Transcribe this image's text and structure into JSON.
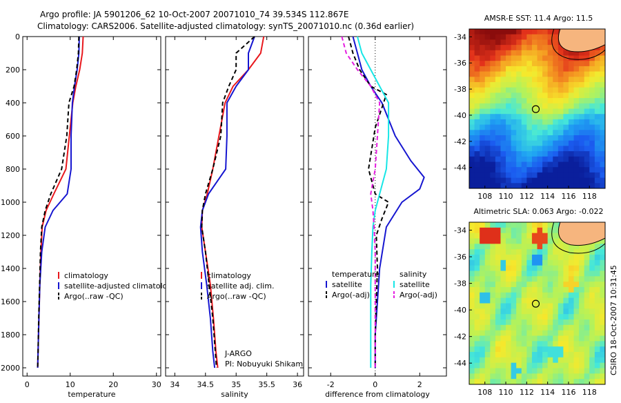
{
  "header": {
    "line1": "Argo profile: JA 5901206_62 10-Oct-2007 20071010_74 39.534S 112.867E",
    "line2": "Climatology: CARS2006. Satellite-adjusted climatology: synTS_20071010.nc (0.36d earlier)"
  },
  "side_stamp": "CSIRO 18-Oct-2007 10:31:45",
  "colors": {
    "red": "#e8171c",
    "blue": "#1515d0",
    "black": "#000000",
    "cyan": "#17e6e6",
    "magenta": "#e51ce0"
  },
  "chart_data": [
    {
      "type": "line",
      "xlabel": "temperature",
      "xlim": [
        -1,
        31
      ],
      "ylim": [
        2050,
        0
      ],
      "xticks": [
        0,
        10,
        20,
        30
      ],
      "yticks": [
        0,
        200,
        400,
        600,
        800,
        1000,
        1200,
        1400,
        1600,
        1800,
        2000
      ],
      "legend_placement": "lower-right",
      "series": [
        {
          "name": "climatology",
          "color": "red",
          "dash": "",
          "x": [
            13,
            12.8,
            12.2,
            11.3,
            10.6,
            9.8,
            9.0,
            6.2,
            4.4,
            3.5,
            3.2,
            2.95,
            2.75,
            2.55,
            2.45
          ],
          "y": [
            0,
            100,
            200,
            300,
            400,
            600,
            800,
            950,
            1050,
            1150,
            1300,
            1500,
            1700,
            1900,
            2000
          ]
        },
        {
          "name": "satellite-adjusted climatology",
          "color": "blue",
          "dash": "",
          "x": [
            12.1,
            12.0,
            11.6,
            11.0,
            10.5,
            10.2,
            10.2,
            9.3,
            6.0,
            4.2,
            3.4,
            2.95,
            2.75,
            2.55,
            2.45
          ],
          "y": [
            0,
            100,
            200,
            300,
            400,
            600,
            800,
            950,
            1050,
            1150,
            1300,
            1500,
            1700,
            1900,
            2000
          ]
        },
        {
          "name": "Argo(..raw -QC)",
          "color": "black",
          "dash": "6,4",
          "x": [
            12.0,
            11.9,
            11.5,
            10.9,
            9.7,
            9.2,
            8.0,
            5.5,
            4.2,
            3.4,
            3.1,
            2.9,
            2.7,
            2.55,
            2.45
          ],
          "y": [
            0,
            100,
            200,
            300,
            400,
            600,
            800,
            950,
            1050,
            1150,
            1300,
            1500,
            1700,
            1900,
            2000
          ]
        }
      ]
    },
    {
      "type": "line",
      "xlabel": "salinity",
      "xlim": [
        33.85,
        36.1
      ],
      "ylim": [
        2050,
        0
      ],
      "xticks": [
        34,
        34.5,
        35,
        35.5,
        36
      ],
      "yticks": [
        0,
        200,
        400,
        600,
        800,
        1000,
        1200,
        1400,
        1600,
        1800,
        2000
      ],
      "legend_placement": "lower-right",
      "series": [
        {
          "name": "climatology",
          "color": "red",
          "dash": "",
          "x": [
            35.45,
            35.4,
            35.2,
            34.95,
            34.82,
            34.72,
            34.62,
            34.53,
            34.45,
            34.44,
            34.5,
            34.58,
            34.63,
            34.67,
            34.7
          ],
          "y": [
            0,
            100,
            200,
            300,
            400,
            600,
            800,
            950,
            1050,
            1150,
            1300,
            1500,
            1700,
            1900,
            2000
          ]
        },
        {
          "name": "satellite adj. clim.",
          "color": "blue",
          "dash": "",
          "x": [
            35.3,
            35.2,
            35.2,
            35.0,
            34.85,
            34.85,
            34.83,
            34.55,
            34.45,
            34.42,
            34.45,
            34.52,
            34.58,
            34.62,
            34.65
          ],
          "y": [
            0,
            100,
            200,
            300,
            400,
            600,
            800,
            950,
            1050,
            1150,
            1300,
            1500,
            1700,
            1900,
            2000
          ]
        },
        {
          "name": "Argo(..raw -QC)",
          "color": "black",
          "dash": "6,4",
          "x": [
            35.3,
            35.0,
            35.0,
            34.88,
            34.78,
            34.75,
            34.62,
            34.5,
            34.45,
            34.44,
            34.5,
            34.56,
            34.62,
            34.66,
            34.68
          ],
          "y": [
            0,
            100,
            200,
            300,
            400,
            600,
            800,
            950,
            1050,
            1150,
            1300,
            1500,
            1700,
            1900,
            2000
          ]
        }
      ],
      "annotations": [
        "J-ARGO",
        "PI: Nobuyuki Shikama"
      ]
    },
    {
      "type": "line",
      "xlabel": "difference from climatology",
      "xlim": [
        -3,
        3.2
      ],
      "ylim": [
        2050,
        0
      ],
      "xticks": [
        -2,
        0,
        2
      ],
      "yticks": [
        0,
        200,
        400,
        600,
        800,
        1000,
        1200,
        1400,
        1600,
        1800,
        2000
      ],
      "legend_placement": "lower-center",
      "legend_columns": [
        {
          "title": "temperature",
          "entries": [
            {
              "label": "satellite",
              "color": "blue",
              "dash": ""
            },
            {
              "label": "Argo(-adj)",
              "color": "black",
              "dash": "6,4"
            }
          ]
        },
        {
          "title": "salinity",
          "entries": [
            {
              "label": "satellite",
              "color": "cyan",
              "dash": ""
            },
            {
              "label": "Argo(-adj)",
              "color": "magenta",
              "dash": "6,4"
            }
          ]
        }
      ],
      "series": [
        {
          "name": "temperature satellite",
          "color": "blue",
          "dash": "",
          "x": [
            -1.0,
            -0.8,
            -0.6,
            -0.2,
            0.3,
            0.9,
            1.6,
            2.2,
            2.0,
            1.2,
            0.5,
            0.2,
            0.1,
            0.0,
            0.0
          ],
          "y": [
            0,
            100,
            200,
            300,
            400,
            600,
            750,
            850,
            920,
            1000,
            1150,
            1400,
            1600,
            1800,
            2000
          ]
        },
        {
          "name": "temperature Argo(-adj)",
          "color": "black",
          "dash": "6,4",
          "x": [
            -1.2,
            -1.0,
            -0.7,
            -0.2,
            0.5,
            0.0,
            -0.3,
            0.0,
            0.6,
            0.3,
            0.05,
            0.1,
            0.05,
            0.0,
            0.0
          ],
          "y": [
            0,
            100,
            200,
            300,
            350,
            550,
            800,
            950,
            1000,
            1100,
            1200,
            1400,
            1600,
            1800,
            2000
          ]
        },
        {
          "name": "salinity satellite",
          "color": "cyan",
          "dash": "",
          "x": [
            -0.8,
            -0.6,
            -0.2,
            0.2,
            0.6,
            0.6,
            0.5,
            0.2,
            0.0,
            -0.1,
            -0.15,
            -0.2,
            -0.2,
            -0.2,
            -0.2
          ],
          "y": [
            0,
            100,
            200,
            300,
            400,
            600,
            800,
            950,
            1050,
            1150,
            1300,
            1500,
            1700,
            1900,
            2000
          ]
        },
        {
          "name": "salinity Argo(-adj)",
          "color": "magenta",
          "dash": "6,4",
          "x": [
            -1.5,
            -1.3,
            -0.8,
            -0.2,
            0.2,
            0.1,
            0.0,
            -0.2,
            -0.1,
            -0.05,
            0.0,
            0.0,
            0.0,
            0.0,
            0.0
          ],
          "y": [
            0,
            100,
            200,
            300,
            400,
            600,
            800,
            950,
            1050,
            1150,
            1300,
            1500,
            1700,
            1900,
            2000
          ]
        }
      ]
    },
    {
      "type": "heatmap",
      "title": "AMSR-E SST: 11.4  Argo: 11.5",
      "xlim": [
        106.5,
        119.5
      ],
      "ylim": [
        -45.6,
        -33.4
      ],
      "xticks": [
        108,
        110,
        112,
        114,
        116,
        118
      ],
      "yticks": [
        -34,
        -36,
        -38,
        -40,
        -42,
        -44
      ],
      "marker": {
        "lon": 112.867,
        "lat": -39.534
      },
      "land_color": "#f6b57e",
      "colorscale": [
        "#0a1f9c",
        "#1b5cf0",
        "#20a6f2",
        "#46e8d8",
        "#b4f25a",
        "#f6e92c",
        "#f59a22",
        "#e3321b",
        "#8a0c0c"
      ]
    },
    {
      "type": "heatmap",
      "title": "Altimetric SLA: 0.063  Argo: -0.022",
      "xlim": [
        106.5,
        119.5
      ],
      "ylim": [
        -45.6,
        -33.4
      ],
      "xticks": [
        108,
        110,
        112,
        114,
        116,
        118
      ],
      "yticks": [
        -34,
        -36,
        -38,
        -40,
        -42,
        -44
      ],
      "marker": {
        "lon": 112.867,
        "lat": -39.534
      },
      "land_color": "#f6b57e",
      "colorscale": [
        "#0a1f9c",
        "#1b5cf0",
        "#20a6f2",
        "#46e8d8",
        "#b4f25a",
        "#f6e92c",
        "#f59a22",
        "#e3321b",
        "#8a0c0c"
      ]
    }
  ]
}
